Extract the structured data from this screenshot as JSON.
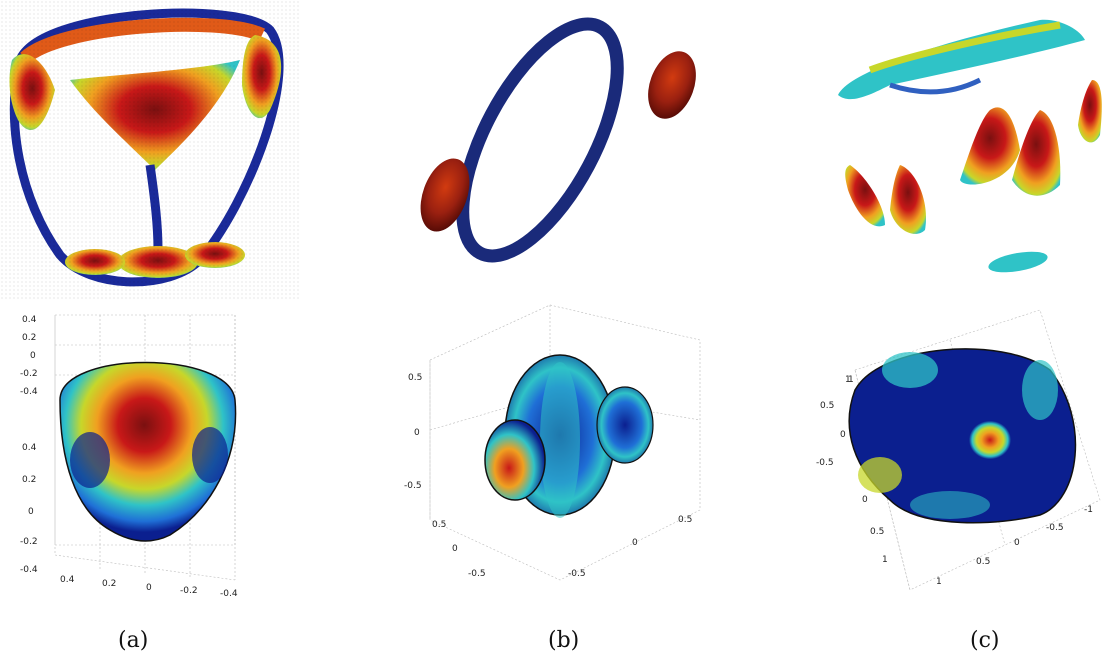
{
  "captions": [
    "(a)",
    "(b)",
    "(c)"
  ],
  "colormap": [
    "#0b1f8f",
    "#1f6fd6",
    "#2fc3c7",
    "#c7d72a",
    "#f0a020",
    "#c81818",
    "#7a1010"
  ],
  "panel_a_bottom_ticks": {
    "z_upper": [
      "0.4",
      "0.2",
      "0",
      "-0.2",
      "-0.4"
    ],
    "y_left": [
      "0.4",
      "0.2",
      "0",
      "-0.2",
      "-0.4"
    ],
    "x_bottom": [
      "0.4",
      "0.2",
      "0",
      "-0.2",
      "-0.4"
    ]
  },
  "panel_b_bottom_ticks": {
    "z_left": [
      "0.5",
      "0",
      "-0.5"
    ],
    "y_left": [
      "0.5",
      "0",
      "-0.5"
    ],
    "x_bottom": [
      "-0.5",
      "0",
      "0.5"
    ]
  },
  "panel_c_bottom_ticks": {
    "z_left": [
      "1",
      "0.5",
      "0",
      "-0.5"
    ],
    "y_left": [
      "0",
      "0.5",
      "1"
    ],
    "x_bottom": [
      "1",
      "0.5",
      "0",
      "-0.5",
      "-1"
    ],
    "z_top_left": [
      "1"
    ]
  }
}
